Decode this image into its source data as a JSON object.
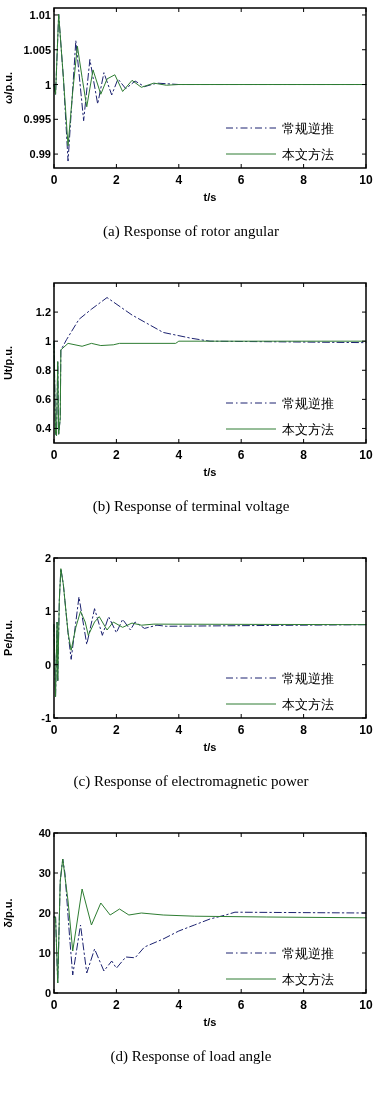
{
  "chart_data": [
    {
      "type": "line",
      "xlabel": "t/s",
      "ylabel": "ω/p.u.",
      "annotations": [
        "(a) Response of rotor angular"
      ],
      "xlim": [
        0,
        10
      ],
      "xticks": [
        0,
        2,
        4,
        6,
        8,
        10
      ],
      "ylim": [
        0.988,
        1.011
      ],
      "yticks": [
        0.99,
        0.995,
        1,
        1.005,
        1.01
      ],
      "legend": "bottom right",
      "grid": false,
      "series": [
        {
          "name": "常规逆推",
          "color": "#1c2270",
          "line_style": "dashdot",
          "x": [
            0,
            0.05,
            0.15,
            0.3,
            0.45,
            0.7,
            0.95,
            1.15,
            1.4,
            1.6,
            1.85,
            2.05,
            2.3,
            2.6,
            2.9,
            3.3,
            4,
            10
          ],
          "values": [
            1,
            0.9986,
            1.0101,
            1.001,
            0.989,
            1.0063,
            0.9948,
            1.0036,
            0.9972,
            1.0017,
            0.9985,
            1.0008,
            0.9994,
            1.0005,
            0.9997,
            1.0002,
            1,
            1
          ]
        },
        {
          "name": "本文方法",
          "color": "#2e7d32",
          "line_style": "solid",
          "x": [
            0,
            0.05,
            0.15,
            0.3,
            0.45,
            0.6,
            0.75,
            0.9,
            1.05,
            1.25,
            1.5,
            1.7,
            1.95,
            2.2,
            2.5,
            2.8,
            3.2,
            3.6,
            4,
            10
          ],
          "values": [
            1,
            0.9986,
            1.0101,
            1.001,
            0.9912,
            0.999,
            1.0055,
            1.001,
            0.9968,
            1.0021,
            0.9986,
            1.0008,
            1.0014,
            0.999,
            1.0006,
            0.9996,
            1.0002,
            0.9999,
            1,
            1
          ]
        }
      ]
    },
    {
      "type": "line",
      "xlabel": "t/s",
      "ylabel": "Ut/p.u.",
      "annotations": [
        "(b) Response of terminal voltage"
      ],
      "xlim": [
        0,
        10
      ],
      "xticks": [
        0,
        2,
        4,
        6,
        8,
        10
      ],
      "ylim": [
        0.3,
        1.4
      ],
      "yticks": [
        0.4,
        0.6,
        0.8,
        1,
        1.2
      ],
      "legend": "bottom right",
      "grid": false,
      "series": [
        {
          "name": "常规逆推",
          "color": "#1c2270",
          "line_style": "dashdot",
          "x": [
            0,
            0.05,
            0.08,
            0.12,
            0.15,
            0.2,
            0.22,
            0.3,
            0.4,
            0.8,
            1.2,
            1.7,
            2.5,
            3.5,
            4.4,
            5,
            10
          ],
          "values": [
            1,
            0.365,
            0.35,
            0.86,
            0.36,
            0.47,
            0.94,
            0.97,
            1.01,
            1.15,
            1.22,
            1.3,
            1.18,
            1.06,
            1.02,
            1,
            0.99
          ]
        },
        {
          "name": "本文方法",
          "color": "#2e7d32",
          "line_style": "solid",
          "x": [
            0,
            0.05,
            0.08,
            0.12,
            0.15,
            0.2,
            0.22,
            0.45,
            0.9,
            1.2,
            1.5,
            1.9,
            2.1,
            3.9,
            4,
            10
          ],
          "values": [
            1,
            0.365,
            0.35,
            0.86,
            0.36,
            0.47,
            0.94,
            0.985,
            0.965,
            0.985,
            0.97,
            0.975,
            0.985,
            0.985,
            1,
            1
          ]
        }
      ]
    },
    {
      "type": "line",
      "xlabel": "t/s",
      "ylabel": "Pe/p.u.",
      "annotations": [
        "(c) Response of electromagnetic power"
      ],
      "xlim": [
        0,
        10
      ],
      "xticks": [
        0,
        2,
        4,
        6,
        8,
        10
      ],
      "ylim": [
        -1,
        2
      ],
      "yticks": [
        -1,
        0,
        1,
        2
      ],
      "legend": "bottom right",
      "grid": false,
      "series": [
        {
          "name": "常规逆推",
          "color": "#1c2270",
          "line_style": "dashdot",
          "x": [
            0,
            0.05,
            0.1,
            0.12,
            0.17,
            0.22,
            0.3,
            0.35,
            0.45,
            0.55,
            0.8,
            1.05,
            1.3,
            1.55,
            1.75,
            2,
            2.2,
            2.45,
            2.6,
            2.9,
            3.3,
            3.6,
            10
          ],
          "values": [
            0.75,
            -0.6,
            0.8,
            -0.3,
            1.2,
            1.8,
            1.5,
            1.2,
            0.6,
            0.1,
            1.27,
            0.38,
            1.05,
            0.55,
            0.9,
            0.6,
            0.85,
            0.65,
            0.8,
            0.68,
            0.74,
            0.72,
            0.75
          ]
        },
        {
          "name": "本文方法",
          "color": "#2e7d32",
          "line_style": "solid",
          "x": [
            0,
            0.05,
            0.1,
            0.12,
            0.17,
            0.22,
            0.3,
            0.35,
            0.45,
            0.55,
            0.7,
            0.85,
            1,
            1.1,
            1.3,
            1.45,
            1.7,
            1.9,
            2.2,
            2.5,
            2.8,
            3.2,
            10
          ],
          "values": [
            0.75,
            -0.6,
            0.8,
            -0.3,
            1.2,
            1.8,
            1.5,
            1.2,
            0.6,
            0.27,
            0.7,
            1,
            0.8,
            0.55,
            0.8,
            0.9,
            0.65,
            0.8,
            0.7,
            0.78,
            0.74,
            0.76,
            0.75
          ]
        }
      ]
    },
    {
      "type": "line",
      "xlabel": "t/s",
      "ylabel": "δ/p.u.",
      "annotations": [
        "(d) Response of load angle"
      ],
      "xlim": [
        0,
        10
      ],
      "xticks": [
        0,
        2,
        4,
        6,
        8,
        10
      ],
      "ylim": [
        0,
        40
      ],
      "yticks": [
        0,
        10,
        20,
        30,
        40
      ],
      "legend": "bottom right",
      "grid": false,
      "series": [
        {
          "name": "常规逆推",
          "color": "#1c2270",
          "line_style": "dashdot",
          "x": [
            0,
            0.05,
            0.12,
            0.2,
            0.28,
            0.35,
            0.5,
            0.6,
            0.85,
            1.05,
            1.3,
            1.6,
            1.85,
            2,
            2.3,
            2.6,
            2.9,
            3.5,
            4,
            4.5,
            5,
            5.5,
            5.8,
            10
          ],
          "values": [
            19,
            19,
            2.5,
            28,
            33.5,
            30,
            14,
            4.5,
            17,
            5,
            11,
            5.5,
            8,
            6.2,
            9,
            8.8,
            11.5,
            13.5,
            15.5,
            17,
            18.5,
            19.5,
            20.2,
            20
          ]
        },
        {
          "name": "本文方法",
          "color": "#2e7d32",
          "line_style": "solid",
          "x": [
            0,
            0.05,
            0.12,
            0.2,
            0.28,
            0.45,
            0.6,
            0.9,
            1.2,
            1.5,
            1.8,
            2.1,
            2.4,
            2.8,
            3.5,
            4.5,
            6.8,
            10
          ],
          "values": [
            19,
            19,
            2.5,
            28,
            33.5,
            23,
            10.5,
            26,
            17,
            22.5,
            19.5,
            21,
            19.5,
            20,
            19.5,
            19.2,
            19,
            18.8
          ]
        }
      ]
    }
  ]
}
